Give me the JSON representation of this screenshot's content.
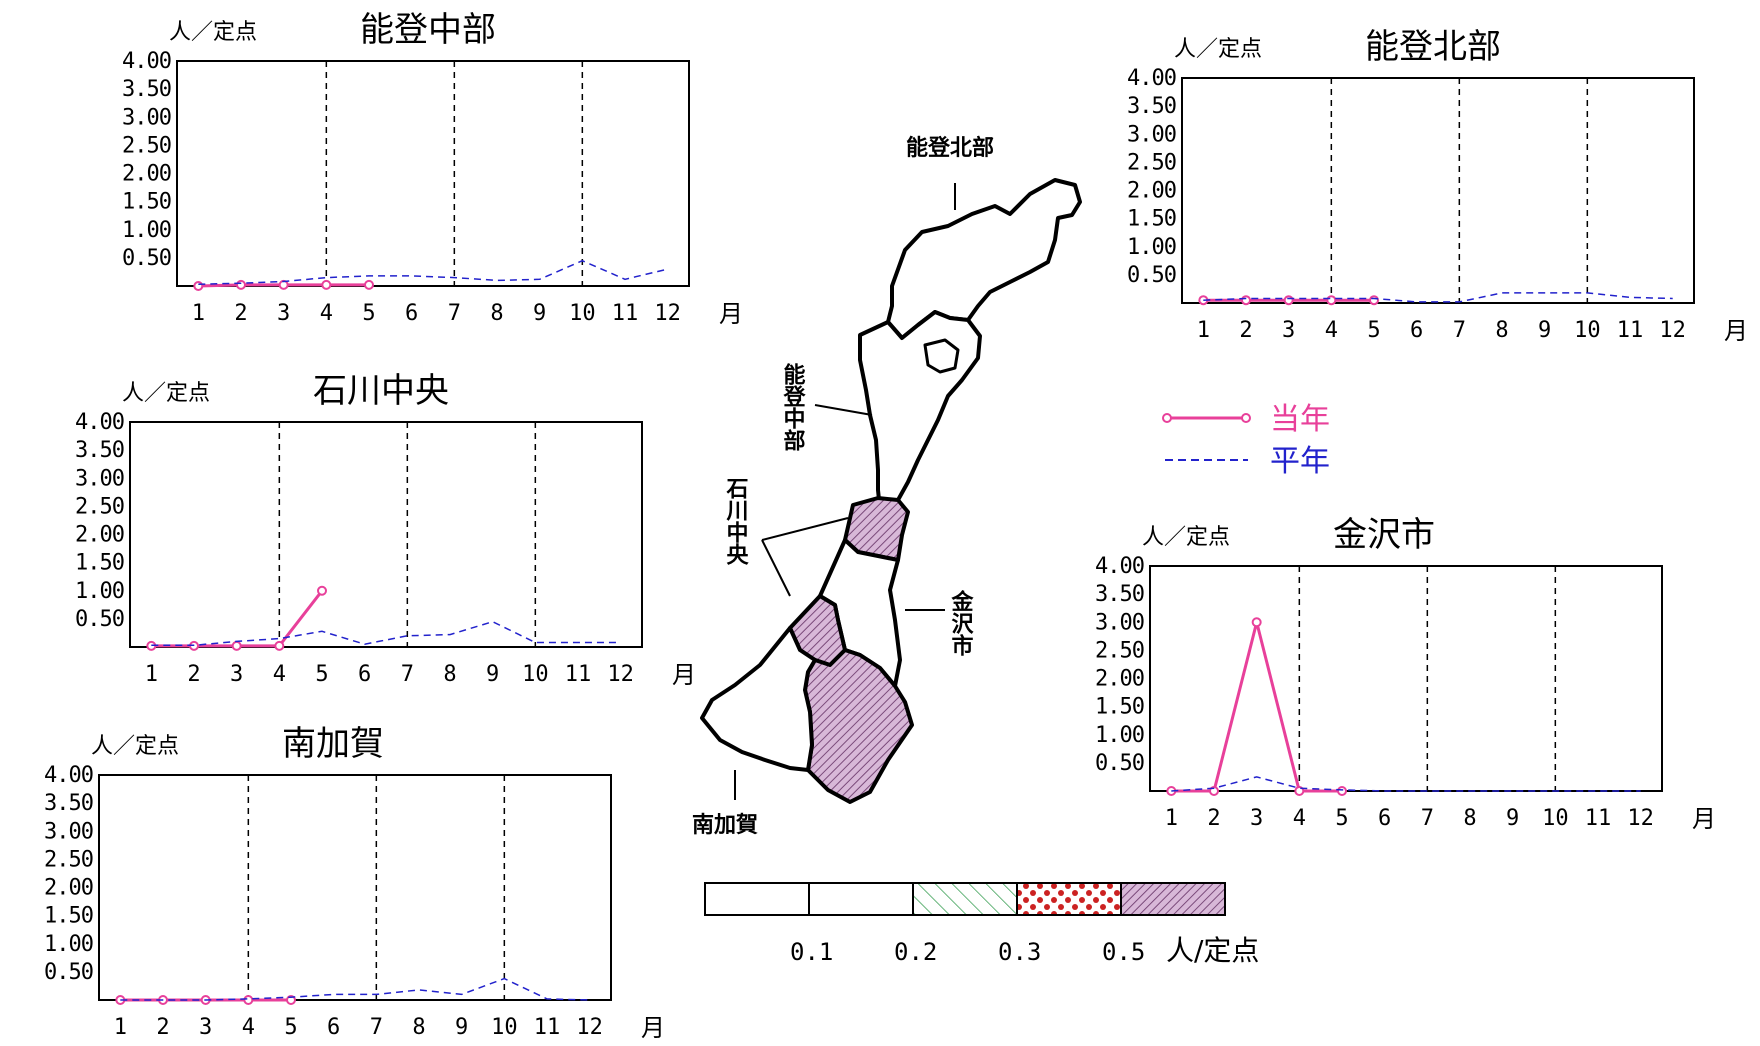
{
  "colors": {
    "current": "#e8409a",
    "average": "#2222cc",
    "fill_purple": "#c9a2c9",
    "fill_red": "#cc2222",
    "fill_green_dot": "#33aa88",
    "fill_green_hatch": "#2e9a4a"
  },
  "legend": {
    "current_label": "当年",
    "average_label": "平年"
  },
  "scale": {
    "ticks": [
      "0.1",
      "0.2",
      "0.3",
      "0.5"
    ],
    "unit": "人/定点",
    "fills": [
      "white",
      "green-dots",
      "green-hatch",
      "red-dots",
      "purple-hatch"
    ]
  },
  "map": {
    "labels": {
      "noto_hokubu": "能登北部",
      "noto_chubu": "能登中部",
      "ishikawa_chuo": "石川中央",
      "kanazawa": "金沢市",
      "minami_kaga": "南加賀"
    },
    "region_fill": {
      "noto_hokubu": "white",
      "noto_chubu": "white",
      "ishikawa_chuo": "purple-hatch",
      "kanazawa": "white",
      "minami_kaga": "purple-hatch"
    }
  },
  "chart_data": [
    {
      "id": "noto_chubu",
      "type": "line",
      "title": "能登中部",
      "unit_label": "人／定点",
      "month_label": "月",
      "x_ticks": [
        "1",
        "2",
        "3",
        "4",
        "5",
        "6",
        "7",
        "8",
        "9",
        "10",
        "11",
        "12"
      ],
      "ylim": [
        0,
        4
      ],
      "y_ticks": [
        "4.00",
        "3.50",
        "3.00",
        "2.50",
        "2.00",
        "1.50",
        "1.00",
        "0.50"
      ],
      "series": [
        {
          "name": "当年",
          "x": [
            1,
            2,
            3,
            4,
            5
          ],
          "values": [
            0.0,
            0.02,
            0.02,
            0.02,
            0.02
          ]
        },
        {
          "name": "平年",
          "x": [
            1,
            2,
            3,
            4,
            5,
            6,
            7,
            8,
            9,
            10,
            11,
            12
          ],
          "values": [
            0.03,
            0.05,
            0.08,
            0.15,
            0.18,
            0.18,
            0.15,
            0.1,
            0.12,
            0.45,
            0.12,
            0.3
          ]
        }
      ]
    },
    {
      "id": "noto_hokubu",
      "type": "line",
      "title": "能登北部",
      "unit_label": "人／定点",
      "month_label": "月",
      "x_ticks": [
        "1",
        "2",
        "3",
        "4",
        "5",
        "6",
        "7",
        "8",
        "9",
        "10",
        "11",
        "12"
      ],
      "ylim": [
        0,
        4
      ],
      "y_ticks": [
        "4.00",
        "3.50",
        "3.00",
        "2.50",
        "2.00",
        "1.50",
        "1.00",
        "0.50"
      ],
      "series": [
        {
          "name": "当年",
          "x": [
            1,
            2,
            3,
            4,
            5
          ],
          "values": [
            0.05,
            0.05,
            0.05,
            0.05,
            0.05
          ]
        },
        {
          "name": "平年",
          "x": [
            1,
            2,
            3,
            4,
            5,
            6,
            7,
            8,
            9,
            10,
            11,
            12
          ],
          "values": [
            0.05,
            0.08,
            0.08,
            0.08,
            0.08,
            0.02,
            0.02,
            0.18,
            0.18,
            0.18,
            0.1,
            0.08
          ]
        }
      ]
    },
    {
      "id": "ishikawa_chuo",
      "type": "line",
      "title": "石川中央",
      "unit_label": "人／定点",
      "month_label": "月",
      "x_ticks": [
        "1",
        "2",
        "3",
        "4",
        "5",
        "6",
        "7",
        "8",
        "9",
        "10",
        "11",
        "12"
      ],
      "ylim": [
        0,
        4
      ],
      "y_ticks": [
        "4.00",
        "3.50",
        "3.00",
        "2.50",
        "2.00",
        "1.50",
        "1.00",
        "0.50"
      ],
      "series": [
        {
          "name": "当年",
          "x": [
            1,
            2,
            3,
            4,
            5
          ],
          "values": [
            0.02,
            0.02,
            0.02,
            0.02,
            1.0
          ]
        },
        {
          "name": "平年",
          "x": [
            1,
            2,
            3,
            4,
            5,
            6,
            7,
            8,
            9,
            10,
            11,
            12
          ],
          "values": [
            0.03,
            0.03,
            0.1,
            0.15,
            0.28,
            0.05,
            0.2,
            0.22,
            0.45,
            0.08,
            0.08,
            0.08
          ]
        }
      ]
    },
    {
      "id": "kanazawa",
      "type": "line",
      "title": "金沢市",
      "unit_label": "人／定点",
      "month_label": "月",
      "x_ticks": [
        "1",
        "2",
        "3",
        "4",
        "5",
        "6",
        "7",
        "8",
        "9",
        "10",
        "11",
        "12"
      ],
      "ylim": [
        0,
        4
      ],
      "y_ticks": [
        "4.00",
        "3.50",
        "3.00",
        "2.50",
        "2.00",
        "1.50",
        "1.00",
        "0.50"
      ],
      "series": [
        {
          "name": "当年",
          "x": [
            1,
            2,
            3,
            4,
            5
          ],
          "values": [
            0.0,
            0.0,
            3.0,
            0.0,
            0.0
          ]
        },
        {
          "name": "平年",
          "x": [
            1,
            2,
            3,
            4,
            5,
            6,
            7,
            8,
            9,
            10,
            11,
            12
          ],
          "values": [
            0.0,
            0.05,
            0.25,
            0.05,
            0.02,
            0.0,
            0.0,
            0.0,
            0.0,
            0.0,
            0.0,
            0.0
          ]
        }
      ]
    },
    {
      "id": "minami_kaga",
      "type": "line",
      "title": "南加賀",
      "unit_label": "人／定点",
      "month_label": "月",
      "x_ticks": [
        "1",
        "2",
        "3",
        "4",
        "5",
        "6",
        "7",
        "8",
        "9",
        "10",
        "11",
        "12"
      ],
      "ylim": [
        0,
        4
      ],
      "y_ticks": [
        "4.00",
        "3.50",
        "3.00",
        "2.50",
        "2.00",
        "1.50",
        "1.00",
        "0.50"
      ],
      "series": [
        {
          "name": "当年",
          "x": [
            1,
            2,
            3,
            4,
            5
          ],
          "values": [
            0.0,
            0.0,
            0.0,
            0.0,
            0.0
          ]
        },
        {
          "name": "平年",
          "x": [
            1,
            2,
            3,
            4,
            5,
            6,
            7,
            8,
            9,
            10,
            11,
            12
          ],
          "values": [
            0.0,
            0.0,
            0.0,
            0.02,
            0.05,
            0.1,
            0.1,
            0.18,
            0.1,
            0.38,
            0.02,
            0.0
          ]
        }
      ]
    }
  ]
}
